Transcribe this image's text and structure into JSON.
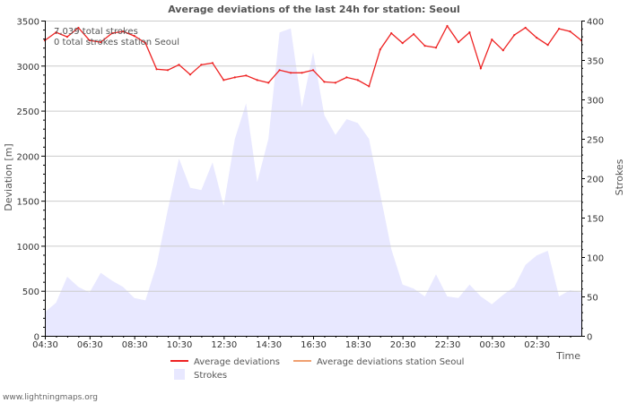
{
  "chart_data": {
    "type": "line",
    "title": "Average deviations of the last 24h for station: Seoul",
    "ylabel_left": "Deviation  [m]",
    "ylabel_right": "Strokes",
    "xlabel": "Time",
    "ylim_left": [
      0,
      3500
    ],
    "ylim_right": [
      0,
      400
    ],
    "yticks_left": [
      0,
      500,
      1000,
      1500,
      2000,
      2500,
      3000,
      3500
    ],
    "yticks_right": [
      0,
      50,
      100,
      150,
      200,
      250,
      300,
      350,
      400
    ],
    "xlim": [
      0,
      1440
    ],
    "xticks": [
      {
        "t": 0,
        "label": "04:30"
      },
      {
        "t": 120,
        "label": "06:30"
      },
      {
        "t": 240,
        "label": "08:30"
      },
      {
        "t": 360,
        "label": "10:30"
      },
      {
        "t": 480,
        "label": "12:30"
      },
      {
        "t": 600,
        "label": "14:30"
      },
      {
        "t": 720,
        "label": "16:30"
      },
      {
        "t": 840,
        "label": "18:30"
      },
      {
        "t": 960,
        "label": "20:30"
      },
      {
        "t": 1080,
        "label": "22:30"
      },
      {
        "t": 1200,
        "label": "00:30"
      },
      {
        "t": 1320,
        "label": "02:30"
      }
    ],
    "annotations": [
      "7,039 total strokes",
      "0 total strokes station Seoul"
    ],
    "legend": [
      {
        "name": "Average deviations",
        "color": "#ee2222",
        "kind": "line"
      },
      {
        "name": "Average deviations station Seoul",
        "color": "#f0a070",
        "kind": "line"
      },
      {
        "name": "Strokes",
        "color": "#e8e8ff",
        "kind": "area"
      }
    ],
    "series": [
      {
        "name": "Average deviations",
        "axis": "left",
        "color": "#ee2222",
        "x": [
          0,
          30,
          60,
          90,
          120,
          150,
          180,
          210,
          240,
          270,
          300,
          330,
          360,
          390,
          420,
          450,
          480,
          510,
          540,
          570,
          600,
          630,
          660,
          690,
          720,
          750,
          780,
          810,
          840,
          870,
          900,
          930,
          960,
          990,
          1020,
          1050,
          1080,
          1110,
          1140,
          1170,
          1200,
          1230,
          1260,
          1290,
          1320,
          1350,
          1380,
          1410,
          1440
        ],
        "values": [
          3280,
          3370,
          3320,
          3420,
          3280,
          3260,
          3360,
          3380,
          3330,
          3250,
          2960,
          2950,
          3010,
          2900,
          3010,
          3030,
          2840,
          2870,
          2890,
          2840,
          2810,
          2950,
          2920,
          2920,
          2950,
          2820,
          2810,
          2870,
          2840,
          2770,
          3180,
          3360,
          3250,
          3350,
          3220,
          3200,
          3440,
          3260,
          3370,
          2970,
          3290,
          3170,
          3340,
          3420,
          3310,
          3230,
          3410,
          3380,
          3280
        ]
      },
      {
        "name": "Average deviations station Seoul",
        "axis": "left",
        "color": "#f0a070",
        "x": [],
        "values": []
      },
      {
        "name": "Strokes",
        "axis": "right",
        "color": "#e8e8ff",
        "x": [
          0,
          30,
          60,
          90,
          120,
          150,
          180,
          210,
          240,
          270,
          300,
          330,
          360,
          390,
          420,
          450,
          480,
          510,
          540,
          570,
          600,
          630,
          660,
          690,
          720,
          750,
          780,
          810,
          840,
          870,
          900,
          930,
          960,
          990,
          1020,
          1050,
          1080,
          1110,
          1140,
          1170,
          1200,
          1230,
          1260,
          1290,
          1320,
          1350,
          1380,
          1410,
          1440
        ],
        "values": [
          30,
          42,
          75,
          62,
          55,
          80,
          70,
          62,
          48,
          45,
          90,
          160,
          225,
          188,
          185,
          220,
          165,
          250,
          295,
          195,
          250,
          385,
          390,
          290,
          360,
          280,
          255,
          275,
          270,
          250,
          180,
          110,
          65,
          60,
          50,
          78,
          50,
          48,
          65,
          50,
          40,
          52,
          62,
          90,
          102,
          108,
          50,
          58,
          55
        ]
      }
    ]
  },
  "footer": "www.lightningmaps.org"
}
